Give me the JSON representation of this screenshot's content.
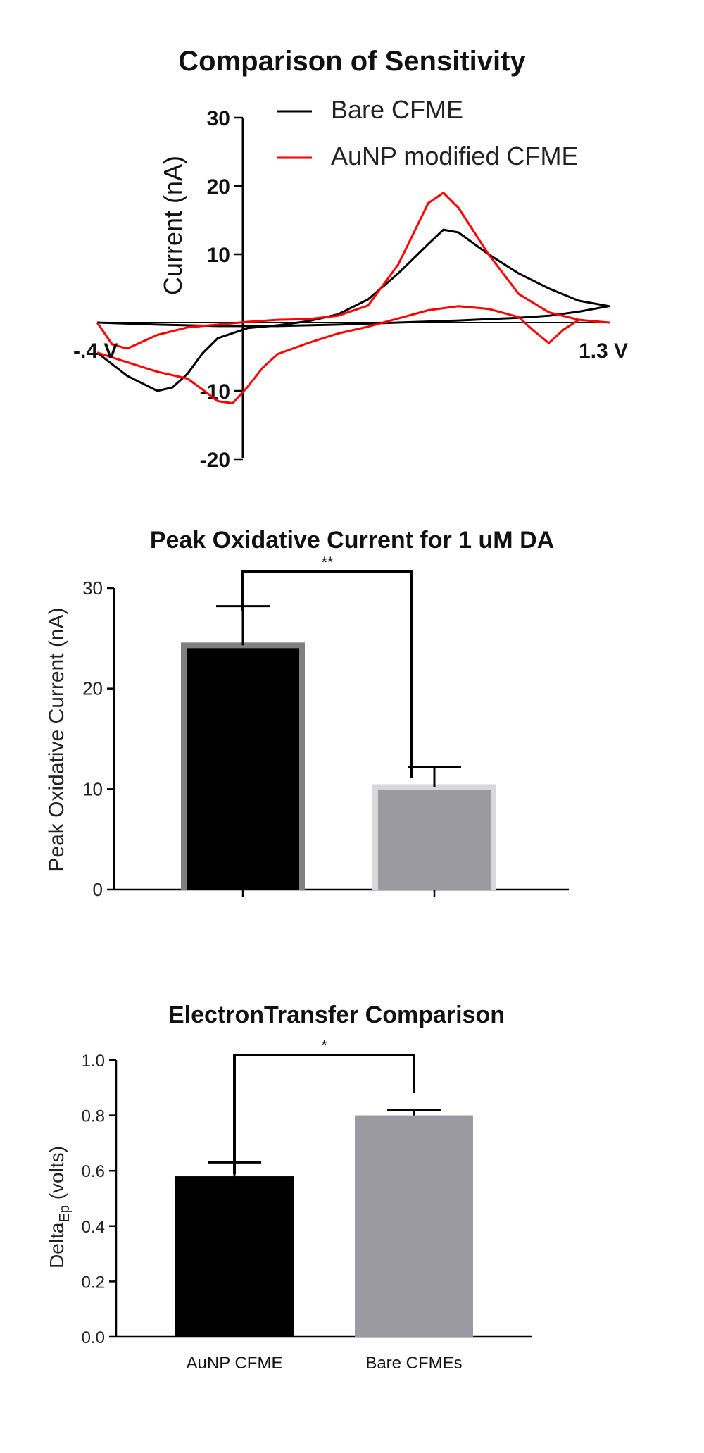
{
  "chart_data": [
    {
      "type": "line",
      "title": "Comparison of  Sensitivity",
      "ylabel": "Current (nA)",
      "ylim": [
        -20,
        30
      ],
      "yticks": [
        30,
        20,
        10,
        -10,
        -20
      ],
      "x_endpoint_labels": [
        "-.4 V",
        "1.3 V"
      ],
      "xlim": [
        -0.4,
        1.3
      ],
      "legend_position": "top-right",
      "series": [
        {
          "name": "Bare CFME",
          "color": "#000000",
          "forward": [
            [
              -0.4,
              -4.4
            ],
            [
              -0.3,
              -7.8
            ],
            [
              -0.2,
              -10
            ],
            [
              -0.15,
              -9.5
            ],
            [
              -0.1,
              -7.5
            ],
            [
              -0.05,
              -4.5
            ],
            [
              0,
              -2.3
            ],
            [
              0.1,
              -0.8
            ],
            [
              0.2,
              -0.4
            ],
            [
              0.3,
              0.2
            ],
            [
              0.4,
              1.2
            ],
            [
              0.5,
              3.4
            ],
            [
              0.6,
              7.2
            ],
            [
              0.7,
              11.5
            ],
            [
              0.75,
              13.6
            ],
            [
              0.8,
              13.2
            ],
            [
              0.9,
              10
            ],
            [
              1.0,
              7.2
            ],
            [
              1.1,
              5
            ],
            [
              1.2,
              3.2
            ],
            [
              1.3,
              2.4
            ]
          ],
          "reverse": [
            [
              1.3,
              2.4
            ],
            [
              1.2,
              1.6
            ],
            [
              1.1,
              1
            ],
            [
              1.0,
              0.7
            ],
            [
              0.9,
              0.5
            ],
            [
              0.8,
              0.3
            ],
            [
              0.6,
              0
            ],
            [
              0.4,
              -0.3
            ],
            [
              0.2,
              -0.5
            ],
            [
              0,
              -0.5
            ],
            [
              -0.2,
              -0.3
            ],
            [
              -0.4,
              0
            ]
          ]
        },
        {
          "name": "AuNP modified CFME",
          "color": "#ff0000",
          "forward": [
            [
              -0.4,
              -4.4
            ],
            [
              -0.3,
              -5.8
            ],
            [
              -0.2,
              -7.2
            ],
            [
              -0.1,
              -8.2
            ],
            [
              -0.05,
              -9.8
            ],
            [
              0,
              -11.5
            ],
            [
              0.05,
              -11.8
            ],
            [
              0.1,
              -9.4
            ],
            [
              0.15,
              -6.6
            ],
            [
              0.2,
              -4.6
            ],
            [
              0.3,
              -3
            ],
            [
              0.4,
              -1.6
            ],
            [
              0.5,
              -0.6
            ],
            [
              0.6,
              0.6
            ],
            [
              0.7,
              1.8
            ],
            [
              0.8,
              2.4
            ],
            [
              0.9,
              2
            ],
            [
              1.0,
              0.8
            ],
            [
              1.05,
              -1.2
            ],
            [
              1.1,
              -3
            ],
            [
              1.15,
              -1
            ],
            [
              1.2,
              0.4
            ],
            [
              1.3,
              0
            ]
          ],
          "reverse": [
            [
              1.3,
              0
            ],
            [
              1.2,
              0.4
            ],
            [
              1.1,
              1.5
            ],
            [
              1.0,
              4.2
            ],
            [
              0.9,
              10
            ],
            [
              0.8,
              16.8
            ],
            [
              0.75,
              19
            ],
            [
              0.7,
              17.5
            ],
            [
              0.6,
              8.5
            ],
            [
              0.5,
              2.5
            ],
            [
              0.4,
              1
            ],
            [
              0.3,
              0.5
            ],
            [
              0.2,
              0.4
            ],
            [
              0.1,
              0.1
            ],
            [
              0,
              -0.3
            ],
            [
              -0.1,
              -0.7
            ],
            [
              -0.2,
              -1.8
            ],
            [
              -0.3,
              -3.8
            ],
            [
              -0.35,
              -3.2
            ],
            [
              -0.4,
              0
            ]
          ]
        }
      ]
    },
    {
      "type": "bar",
      "title": "Peak Oxidative  Current for 1 uM DA",
      "ylabel": "Peak  Oxidative  Current (nA)",
      "ylim": [
        0,
        30
      ],
      "yticks": [
        0,
        10,
        20,
        30
      ],
      "categories": [
        "",
        ""
      ],
      "values": [
        24.3,
        10.2
      ],
      "errors": [
        3.9,
        2.0
      ],
      "fills": [
        "#000000",
        "#9a9aa0"
      ],
      "borders": [
        "#808080",
        "#d8d8d8"
      ],
      "significance": "**"
    },
    {
      "type": "bar",
      "title": "ElectronTransfer Comparison",
      "ylabel_main": "Delta",
      "ylabel_sub": "Ep",
      "ylabel_tail": " (volts)",
      "ylim": [
        0,
        1.0
      ],
      "yticks": [
        "0.0",
        "0.2",
        "0.4",
        "0.6",
        "0.8",
        "1.0"
      ],
      "categories": [
        "AuNP CFME",
        "Bare CFMEs"
      ],
      "values": [
        0.58,
        0.8
      ],
      "errors": [
        0.05,
        0.02
      ],
      "fills": [
        "#000000",
        "#9a9aa0"
      ],
      "significance": "*"
    }
  ]
}
